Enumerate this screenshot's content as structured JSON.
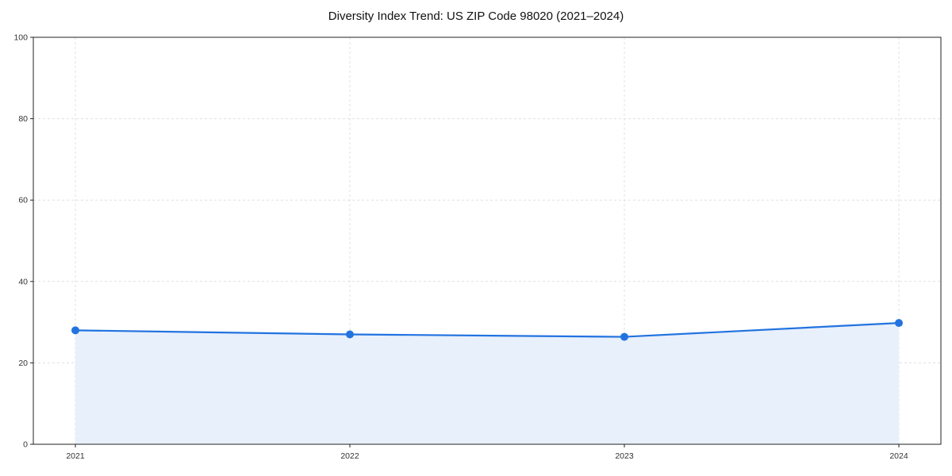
{
  "chart_data": {
    "type": "line",
    "title": "Diversity Index Trend: US ZIP Code 98020 (2021–2024)",
    "x": [
      "2021",
      "2022",
      "2023",
      "2024"
    ],
    "series": [
      {
        "name": "Diversity Index",
        "values": [
          28,
          27,
          26.4,
          29.8
        ]
      }
    ],
    "xlabel": "",
    "ylabel": "",
    "ylim": [
      0,
      100
    ],
    "yticks": [
      0,
      20,
      40,
      60,
      80,
      100
    ],
    "grid": "dashed",
    "legend": "none",
    "colors": {
      "line": "#2273e0",
      "marker": "#2273e0",
      "area_fill": "#e8f0fc",
      "gridline": "#e0e0e0",
      "spine": "#222222",
      "tick_text": "#333333"
    }
  }
}
